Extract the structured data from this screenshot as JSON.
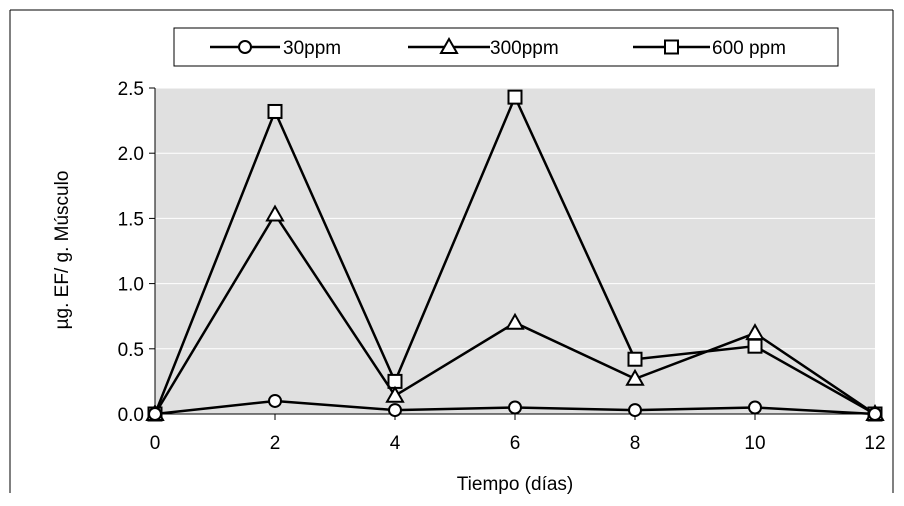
{
  "chart_data": {
    "type": "line",
    "title": "",
    "xlabel": "Tiempo (días)",
    "ylabel": "µg. EF/ g. Músculo",
    "x": [
      0,
      2,
      4,
      6,
      8,
      10,
      12
    ],
    "xticks": [
      "0",
      "2",
      "4",
      "6",
      "8",
      "10",
      "12"
    ],
    "yticks": [
      "0.0",
      "0.5",
      "1.0",
      "1.5",
      "2.0",
      "2.5"
    ],
    "xlim": [
      0,
      12
    ],
    "ylim": [
      0,
      2.5
    ],
    "grid": "horizontal",
    "legend_position": "top",
    "plot_background": "#e0e0e0",
    "series": [
      {
        "name": "30ppm",
        "marker": "circle",
        "values": [
          0.0,
          0.1,
          0.03,
          0.05,
          0.03,
          0.05,
          0.0
        ]
      },
      {
        "name": "300ppm",
        "marker": "triangle",
        "values": [
          0.0,
          1.53,
          0.14,
          0.7,
          0.27,
          0.62,
          0.0
        ]
      },
      {
        "name": "600 ppm",
        "marker": "square",
        "values": [
          0.0,
          2.32,
          0.25,
          2.43,
          0.42,
          0.52,
          0.0
        ]
      }
    ]
  }
}
